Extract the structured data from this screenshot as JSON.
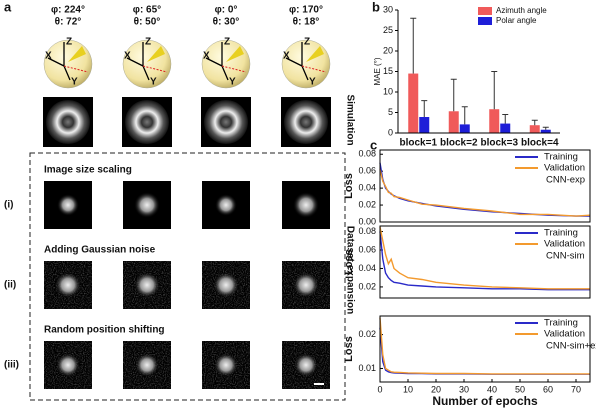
{
  "panel_a": {
    "label": "a",
    "views": [
      {
        "phi": "φ: 224°",
        "theta": "θ: 72°"
      },
      {
        "phi": "φ: 65°",
        "theta": "θ: 50°"
      },
      {
        "phi": "φ: 0°",
        "theta": "θ: 30°"
      },
      {
        "phi": "φ: 170°",
        "theta": "θ: 18°"
      }
    ],
    "axes": [
      "X",
      "Y",
      "Z"
    ],
    "simulation": "Simulation",
    "expansion": "Dataset expansion",
    "sections": [
      {
        "marker": "(i)",
        "title": "Image size scaling"
      },
      {
        "marker": "(ii)",
        "title": "Adding Gaussian noise"
      },
      {
        "marker": "(iii)",
        "title": "Random position shifting"
      }
    ]
  },
  "chart_data": [
    {
      "type": "bar",
      "label": "b",
      "ylabel": "MAE (°)",
      "categories": [
        "block=1",
        "block=2",
        "block=3",
        "block=4"
      ],
      "series": [
        {
          "name": "Azimuth angle",
          "color": "#f05a5a",
          "values": [
            14.5,
            5.3,
            5.8,
            1.9
          ],
          "errors": [
            13.5,
            7.8,
            9.2,
            1.2
          ]
        },
        {
          "name": "Polar angle",
          "color": "#1e1ed8",
          "values": [
            3.9,
            2.1,
            2.3,
            0.8
          ],
          "errors": [
            4.0,
            4.3,
            2.2,
            0.6
          ]
        }
      ],
      "ylim": [
        0,
        30
      ],
      "yticks": [
        0,
        5,
        10,
        15,
        20,
        25,
        30
      ],
      "legend": "upper right"
    },
    {
      "type": "line",
      "label": "c",
      "ylabel": "Loss",
      "annotation": "CNN-exp",
      "x": [
        0,
        1,
        2,
        3,
        4,
        5,
        7,
        10,
        15,
        20,
        30,
        40,
        50,
        60,
        70,
        75
      ],
      "series": [
        {
          "name": "Training",
          "color": "#2a2ac8",
          "values": [
            0.07,
            0.05,
            0.04,
            0.036,
            0.033,
            0.031,
            0.028,
            0.025,
            0.022,
            0.019,
            0.015,
            0.012,
            0.01,
            0.008,
            0.007,
            0.007
          ]
        },
        {
          "name": "Validation",
          "color": "#f39a2e",
          "values": [
            0.062,
            0.048,
            0.042,
            0.035,
            0.034,
            0.03,
            0.029,
            0.026,
            0.021,
            0.02,
            0.016,
            0.013,
            0.009,
            0.009,
            0.007,
            0.008
          ]
        }
      ],
      "xlim": [
        0,
        75
      ],
      "ylim": [
        0,
        0.085
      ],
      "yticks": [
        {
          "value": 0,
          "label": "0.00"
        },
        0.02,
        0.04,
        0.06,
        0.08
      ],
      "legend": "upper right"
    },
    {
      "type": "line",
      "ylabel": "Loss",
      "annotation": "CNN-sim",
      "x": [
        0,
        1,
        2,
        3,
        4,
        5,
        7,
        10,
        15,
        20,
        30,
        40,
        50,
        60,
        70,
        75
      ],
      "series": [
        {
          "name": "Training",
          "color": "#2a2ac8",
          "values": [
            0.08,
            0.05,
            0.035,
            0.03,
            0.027,
            0.025,
            0.024,
            0.022,
            0.021,
            0.02,
            0.019,
            0.018,
            0.018,
            0.017,
            0.017,
            0.017
          ]
        },
        {
          "name": "Validation",
          "color": "#f39a2e",
          "values": [
            0.085,
            0.07,
            0.055,
            0.045,
            0.05,
            0.04,
            0.035,
            0.03,
            0.028,
            0.025,
            0.022,
            0.02,
            0.019,
            0.018,
            0.018,
            0.018
          ]
        }
      ],
      "xlim": [
        0,
        75
      ],
      "ylim": [
        0.008,
        0.086
      ],
      "yticks": [
        0.02,
        0.04,
        0.06,
        0.08
      ],
      "legend": "upper right"
    },
    {
      "type": "line",
      "ylabel": "Loss",
      "annotation": "CNN-sim+exp",
      "xlabel": "Number of epochs",
      "x": [
        0,
        1,
        2,
        3,
        4,
        5,
        7,
        10,
        15,
        20,
        30,
        40,
        50,
        60,
        70,
        75
      ],
      "series": [
        {
          "name": "Training",
          "color": "#2a2ac8",
          "values": [
            0.022,
            0.012,
            0.0095,
            0.009,
            0.0088,
            0.0087,
            0.0086,
            0.0085,
            0.0085,
            0.0084,
            0.0084,
            0.0083,
            0.0083,
            0.0083,
            0.0083,
            0.0083
          ]
        },
        {
          "name": "Validation",
          "color": "#f39a2e",
          "values": [
            0.025,
            0.014,
            0.01,
            0.0095,
            0.009,
            0.0089,
            0.0088,
            0.0087,
            0.0086,
            0.0085,
            0.0085,
            0.0084,
            0.0084,
            0.0084,
            0.0084,
            0.0084
          ]
        }
      ],
      "xlim": [
        0,
        75
      ],
      "xticks": [
        0,
        10,
        20,
        30,
        40,
        50,
        60,
        70
      ],
      "ylim": [
        0.006,
        0.0255
      ],
      "yticks": [
        0.01,
        0.02
      ],
      "legend": "upper right"
    }
  ]
}
